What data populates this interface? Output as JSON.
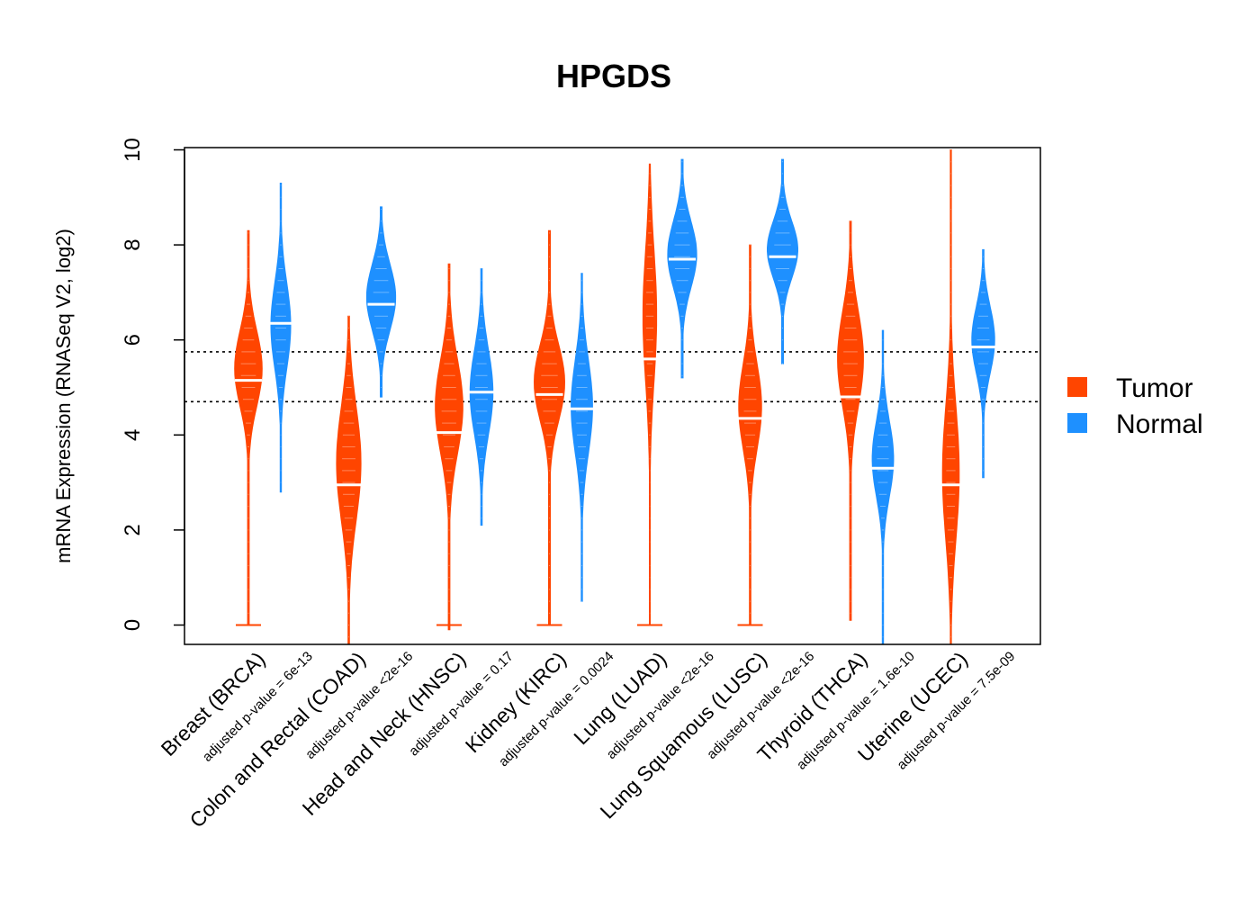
{
  "chart_data": {
    "type": "violin",
    "title": "HPGDS",
    "xlabel": "",
    "ylabel": "mRNA Expression (RNASeq V2, log2)",
    "ylim": [
      -0.4,
      10
    ],
    "yticks": [
      "0",
      "2",
      "4",
      "6",
      "8",
      "10"
    ],
    "reference_lines": [
      5.75,
      4.7
    ],
    "legend": {
      "placement": "right",
      "entries": [
        {
          "name": "Tumor",
          "color": "#FF4500"
        },
        {
          "name": "Normal",
          "color": "#1E90FF"
        }
      ]
    },
    "categories": [
      {
        "label": "Breast (BRCA)",
        "pvalue": "adjusted p-value = 6e-13",
        "tumor": {
          "min": 0.0,
          "max": 8.3,
          "median": 5.15,
          "center": 5.4,
          "peak_width": 0.9,
          "spread": 0.8
        },
        "normal": {
          "min": 2.8,
          "max": 9.3,
          "median": 6.35,
          "center": 6.3,
          "peak_width": 0.65,
          "spread": 0.9
        }
      },
      {
        "label": "Colon and Rectal (COAD)",
        "pvalue": "adjusted p-value <2e-16",
        "tumor": {
          "min": -0.4,
          "max": 6.5,
          "median": 2.95,
          "center": 3.4,
          "peak_width": 0.8,
          "spread": 1.2
        },
        "normal": {
          "min": 4.8,
          "max": 8.8,
          "median": 6.75,
          "center": 6.9,
          "peak_width": 0.95,
          "spread": 0.7
        }
      },
      {
        "label": "Head and Neck (HNSC)",
        "pvalue": "adjusted p-value = 0.17",
        "tumor": {
          "min": -0.1,
          "max": 7.6,
          "median": 4.05,
          "center": 4.6,
          "peak_width": 0.9,
          "spread": 1.0
        },
        "normal": {
          "min": 2.1,
          "max": 7.5,
          "median": 4.9,
          "center": 4.9,
          "peak_width": 0.75,
          "spread": 0.9
        }
      },
      {
        "label": "Kidney (KIRC)",
        "pvalue": "adjusted p-value = 0.0024",
        "tumor": {
          "min": 0.0,
          "max": 8.3,
          "median": 4.85,
          "center": 5.1,
          "peak_width": 1.0,
          "spread": 0.8
        },
        "normal": {
          "min": 0.5,
          "max": 7.4,
          "median": 4.55,
          "center": 4.6,
          "peak_width": 0.7,
          "spread": 1.0
        }
      },
      {
        "label": "Lung (LUAD)",
        "pvalue": "adjusted p-value <2e-16",
        "tumor": {
          "min": 0.0,
          "max": 9.7,
          "median": 5.6,
          "center": 6.5,
          "peak_width": 0.45,
          "spread": 1.4
        },
        "normal": {
          "min": 5.2,
          "max": 9.8,
          "median": 7.7,
          "center": 7.8,
          "peak_width": 0.95,
          "spread": 0.7
        }
      },
      {
        "label": "Lung Squamous (LUSC)",
        "pvalue": "adjusted p-value <2e-16",
        "tumor": {
          "min": 0.0,
          "max": 8.0,
          "median": 4.35,
          "center": 4.6,
          "peak_width": 0.75,
          "spread": 0.9
        },
        "normal": {
          "min": 5.5,
          "max": 9.8,
          "median": 7.75,
          "center": 7.9,
          "peak_width": 1.0,
          "spread": 0.6
        }
      },
      {
        "label": "Thyroid (THCA)",
        "pvalue": "adjusted p-value = 1.6e-10",
        "tumor": {
          "min": 0.1,
          "max": 8.5,
          "median": 4.8,
          "center": 5.6,
          "peak_width": 0.85,
          "spread": 1.0
        },
        "normal": {
          "min": -0.4,
          "max": 6.2,
          "median": 3.3,
          "center": 3.5,
          "peak_width": 0.7,
          "spread": 0.8
        }
      },
      {
        "label": "Uterine (UCEC)",
        "pvalue": "adjusted p-value = 7.5e-09",
        "tumor": {
          "min": -0.4,
          "max": 10.0,
          "median": 2.95,
          "center": 3.2,
          "peak_width": 0.55,
          "spread": 1.4
        },
        "normal": {
          "min": 3.1,
          "max": 7.9,
          "median": 5.85,
          "center": 6.0,
          "peak_width": 0.75,
          "spread": 0.7
        }
      }
    ]
  }
}
